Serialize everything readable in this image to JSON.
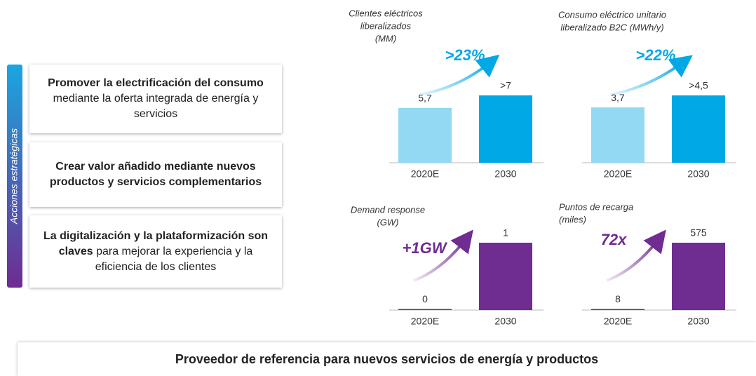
{
  "sidebar_label": "Acciones estratégicas",
  "actions": [
    {
      "bold": "Promover la electrificación del consumo",
      "text": "mediante la oferta integrada de energía y servicios"
    },
    {
      "bold": "Crear valor añadido mediante nuevos productos y servicios complementarios"
    },
    {
      "bold": "La digitalización y la plataformización son claves",
      "text": "para mejorar la experiencia y la eficiencia de los clientes"
    }
  ],
  "chart_data": [
    {
      "type": "bar",
      "title": [
        "Clientes eléctricos",
        "liberalizados",
        "(MM)"
      ],
      "annotation": ">23%",
      "categories": [
        "2020E",
        "2030"
      ],
      "values": [
        5.7,
        7
      ],
      "value_labels": [
        "5,7",
        ">7"
      ],
      "colors": [
        "#93d9f4",
        "#00a8e6"
      ]
    },
    {
      "type": "bar",
      "title": [
        "Consumo eléctrico unitario",
        "liberalizado B2C (MWh/y)"
      ],
      "annotation": ">22%",
      "categories": [
        "2020E",
        "2030"
      ],
      "values": [
        3.7,
        4.5
      ],
      "value_labels": [
        "3,7",
        ">4,5"
      ],
      "colors": [
        "#93d9f4",
        "#00a8e6"
      ]
    },
    {
      "type": "bar",
      "title": [
        "Demand response",
        "(GW)"
      ],
      "annotation": "+1GW",
      "categories": [
        "2020E",
        "2030"
      ],
      "values": [
        0,
        1
      ],
      "colors": [
        "#6f2c91",
        "#6f2c91"
      ]
    },
    {
      "type": "bar",
      "title": [
        "Puntos de recarga",
        "(miles)"
      ],
      "annotation": "72x",
      "categories": [
        "2020E",
        "2030"
      ],
      "values": [
        8,
        575
      ],
      "colors": [
        "#6f2c91",
        "#6f2c91"
      ]
    }
  ],
  "footer": "Proveedor de referencia para nuevos servicios de energía y productos"
}
